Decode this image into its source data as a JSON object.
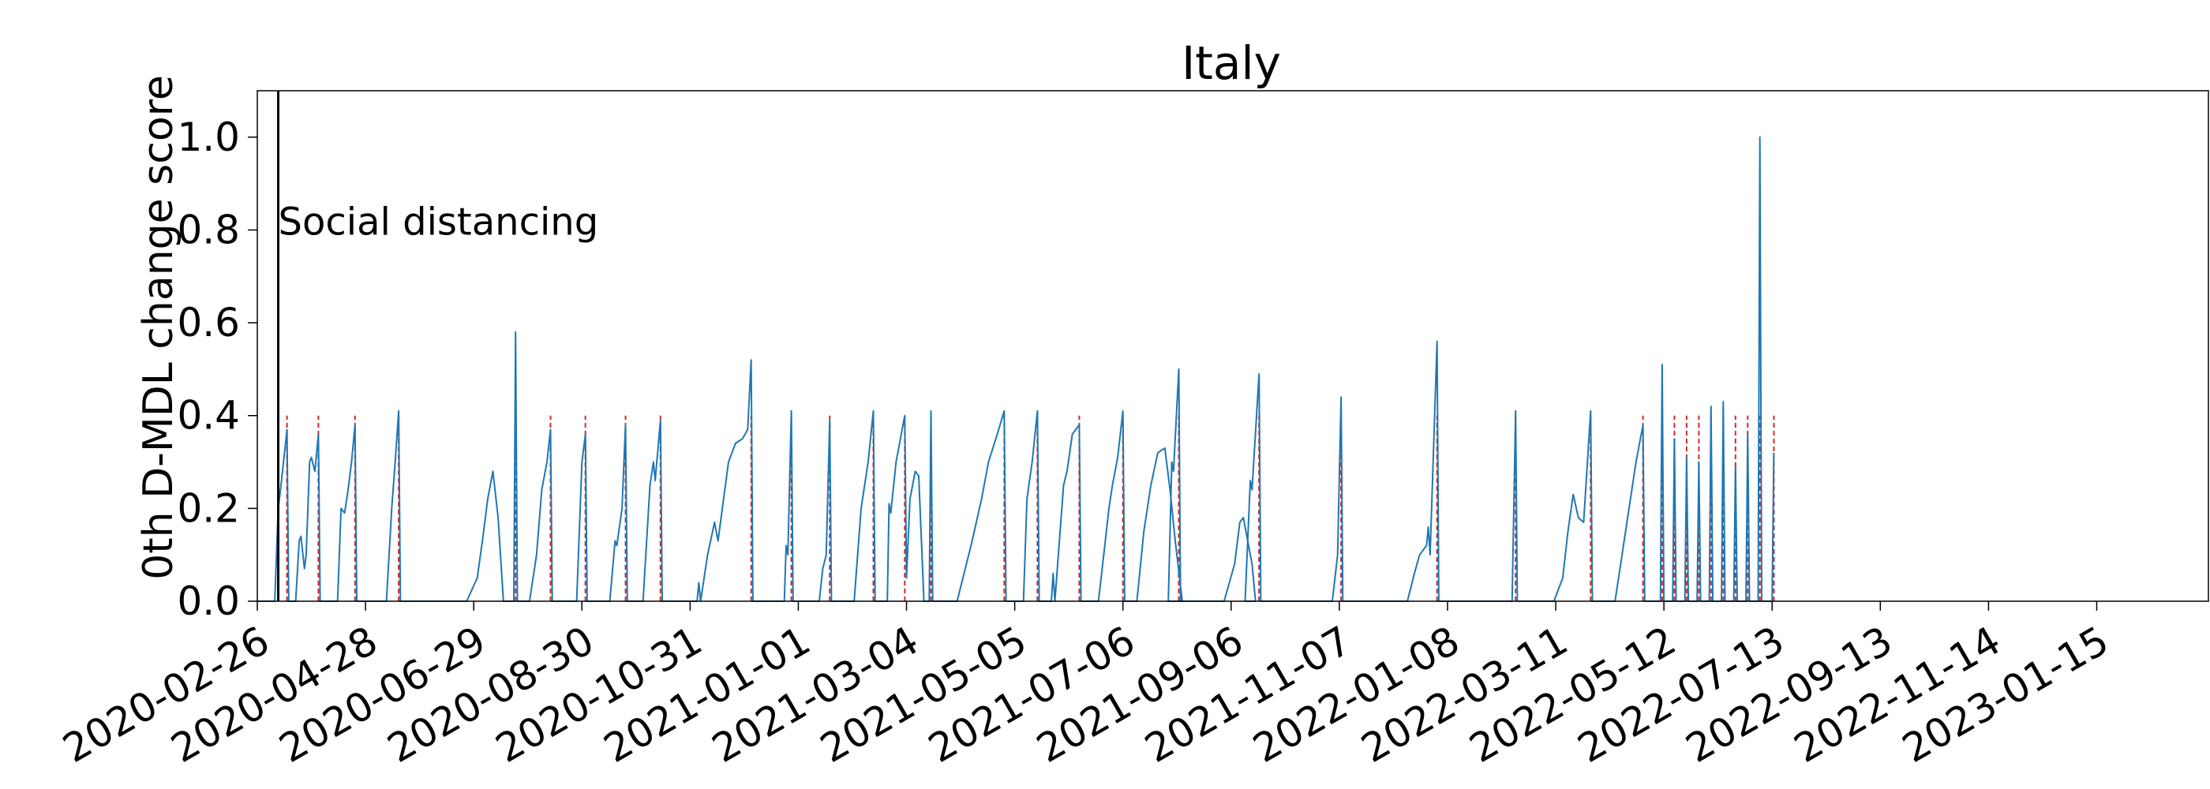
{
  "chart_data": {
    "type": "line",
    "title": "Italy",
    "xlabel": "",
    "ylabel": "0th D-MDL change score",
    "x_start": "2020-02-26",
    "x_end": "2023-03-20",
    "ylim": [
      0,
      1.1
    ],
    "yticks": [
      "0.0",
      "0.2",
      "0.4",
      "0.6",
      "0.8",
      "1.0"
    ],
    "xticks": [
      "2020-02-26",
      "2020-04-28",
      "2020-06-29",
      "2020-08-30",
      "2020-10-31",
      "2021-01-01",
      "2021-03-04",
      "2021-05-05",
      "2021-07-06",
      "2021-09-06",
      "2021-11-07",
      "2022-01-08",
      "2022-03-11",
      "2022-05-12",
      "2022-07-13",
      "2022-09-13",
      "2022-11-14",
      "2023-01-15"
    ],
    "grid": false,
    "series_color": "#1f77b4",
    "alarm_color": "#d62728",
    "event_line_color": "#000000",
    "annotation": {
      "text": "Social distancing",
      "date": "2020-03-09",
      "y": 0.82
    },
    "series": [
      {
        "points": [
          [
            "2020-02-26",
            0
          ],
          [
            "2020-03-07",
            0
          ],
          [
            "2020-03-08",
            0.1
          ],
          [
            "2020-03-09",
            0.2
          ],
          [
            "2020-03-10",
            0.23
          ],
          [
            "2020-03-12",
            0.3
          ],
          [
            "2020-03-14",
            0.37
          ],
          [
            "2020-03-15",
            0
          ],
          [
            "2020-03-19",
            0
          ],
          [
            "2020-03-21",
            0.13
          ],
          [
            "2020-03-22",
            0.14
          ],
          [
            "2020-03-24",
            0.07
          ],
          [
            "2020-03-25",
            0.1
          ],
          [
            "2020-03-27",
            0.3
          ],
          [
            "2020-03-28",
            0.31
          ],
          [
            "2020-03-30",
            0.28
          ],
          [
            "2020-04-01",
            0.36
          ],
          [
            "2020-04-02",
            0
          ],
          [
            "2020-04-12",
            0
          ],
          [
            "2020-04-14",
            0.2
          ],
          [
            "2020-04-16",
            0.19
          ],
          [
            "2020-04-18",
            0.24
          ],
          [
            "2020-04-20",
            0.3
          ],
          [
            "2020-04-22",
            0.38
          ],
          [
            "2020-04-23",
            0
          ],
          [
            "2020-05-10",
            0
          ],
          [
            "2020-05-13",
            0.2
          ],
          [
            "2020-05-15",
            0.3
          ],
          [
            "2020-05-17",
            0.41
          ],
          [
            "2020-05-18",
            0
          ],
          [
            "2020-06-25",
            0
          ],
          [
            "2020-07-01",
            0.05
          ],
          [
            "2020-07-04",
            0.13
          ],
          [
            "2020-07-07",
            0.22
          ],
          [
            "2020-07-10",
            0.28
          ],
          [
            "2020-07-13",
            0.18
          ],
          [
            "2020-07-16",
            0
          ],
          [
            "2020-07-22",
            0
          ],
          [
            "2020-07-23",
            0.58
          ],
          [
            "2020-07-24",
            0
          ],
          [
            "2020-07-31",
            0
          ],
          [
            "2020-08-04",
            0.1
          ],
          [
            "2020-08-07",
            0.24
          ],
          [
            "2020-08-10",
            0.3
          ],
          [
            "2020-08-12",
            0.37
          ],
          [
            "2020-08-13",
            0
          ],
          [
            "2020-08-27",
            0
          ],
          [
            "2020-08-30",
            0.3
          ],
          [
            "2020-09-01",
            0.36
          ],
          [
            "2020-09-02",
            0
          ],
          [
            "2020-09-15",
            0
          ],
          [
            "2020-09-18",
            0.13
          ],
          [
            "2020-09-19",
            0.12
          ],
          [
            "2020-09-22",
            0.2
          ],
          [
            "2020-09-24",
            0.38
          ],
          [
            "2020-09-25",
            0
          ],
          [
            "2020-10-04",
            0
          ],
          [
            "2020-10-08",
            0.25
          ],
          [
            "2020-10-10",
            0.3
          ],
          [
            "2020-10-11",
            0.26
          ],
          [
            "2020-10-14",
            0.39
          ],
          [
            "2020-10-15",
            0
          ],
          [
            "2020-11-04",
            0
          ],
          [
            "2020-11-05",
            0.04
          ],
          [
            "2020-11-06",
            0
          ],
          [
            "2020-11-10",
            0.1
          ],
          [
            "2020-11-14",
            0.17
          ],
          [
            "2020-11-16",
            0.13
          ],
          [
            "2020-11-22",
            0.3
          ],
          [
            "2020-11-26",
            0.34
          ],
          [
            "2020-11-30",
            0.35
          ],
          [
            "2020-12-03",
            0.37
          ],
          [
            "2020-12-05",
            0.52
          ],
          [
            "2020-12-06",
            0
          ],
          [
            "2020-12-24",
            0
          ],
          [
            "2020-12-25",
            0.12
          ],
          [
            "2020-12-26",
            0.1
          ],
          [
            "2020-12-28",
            0.41
          ],
          [
            "2020-12-29",
            0
          ],
          [
            "2021-01-13",
            0
          ],
          [
            "2021-01-15",
            0.07
          ],
          [
            "2021-01-17",
            0.1
          ],
          [
            "2021-01-19",
            0.39
          ],
          [
            "2021-01-20",
            0
          ],
          [
            "2021-02-02",
            0
          ],
          [
            "2021-02-06",
            0.2
          ],
          [
            "2021-02-10",
            0.3
          ],
          [
            "2021-02-13",
            0.41
          ],
          [
            "2021-02-14",
            0
          ],
          [
            "2021-02-21",
            0
          ],
          [
            "2021-02-22",
            0.21
          ],
          [
            "2021-02-23",
            0.19
          ],
          [
            "2021-02-26",
            0.3
          ],
          [
            "2021-03-03",
            0.4
          ],
          [
            "2021-03-04",
            0.05
          ],
          [
            "2021-03-06",
            0.22
          ],
          [
            "2021-03-09",
            0.28
          ],
          [
            "2021-03-11",
            0.27
          ],
          [
            "2021-03-14",
            0
          ],
          [
            "2021-03-17",
            0
          ],
          [
            "2021-03-18",
            0.41
          ],
          [
            "2021-03-19",
            0
          ],
          [
            "2021-04-02",
            0
          ],
          [
            "2021-04-10",
            0.12
          ],
          [
            "2021-04-16",
            0.22
          ],
          [
            "2021-04-20",
            0.3
          ],
          [
            "2021-04-25",
            0.36
          ],
          [
            "2021-04-29",
            0.41
          ],
          [
            "2021-04-30",
            0
          ],
          [
            "2021-05-10",
            0
          ],
          [
            "2021-05-12",
            0.22
          ],
          [
            "2021-05-15",
            0.3
          ],
          [
            "2021-05-18",
            0.41
          ],
          [
            "2021-05-19",
            0
          ],
          [
            "2021-05-26",
            0
          ],
          [
            "2021-05-27",
            0.06
          ],
          [
            "2021-05-28",
            0
          ],
          [
            "2021-05-30",
            0.1
          ],
          [
            "2021-06-02",
            0.25
          ],
          [
            "2021-06-04",
            0.28
          ],
          [
            "2021-06-07",
            0.36
          ],
          [
            "2021-06-11",
            0.38
          ],
          [
            "2021-06-12",
            0
          ],
          [
            "2021-06-22",
            0
          ],
          [
            "2021-06-25",
            0.1
          ],
          [
            "2021-06-28",
            0.2
          ],
          [
            "2021-06-30",
            0.25
          ],
          [
            "2021-07-03",
            0.31
          ],
          [
            "2021-07-06",
            0.41
          ],
          [
            "2021-07-07",
            0
          ],
          [
            "2021-07-14",
            0
          ],
          [
            "2021-07-18",
            0.15
          ],
          [
            "2021-07-22",
            0.25
          ],
          [
            "2021-07-26",
            0.32
          ],
          [
            "2021-07-30",
            0.33
          ],
          [
            "2021-08-02",
            0.24
          ],
          [
            "2021-08-05",
            0.13
          ],
          [
            "2021-08-09",
            0
          ],
          [
            "2021-08-01",
            0
          ],
          [
            "2021-08-03",
            0.3
          ],
          [
            "2021-08-04",
            0.28
          ],
          [
            "2021-08-07",
            0.5
          ],
          [
            "2021-08-08",
            0
          ],
          [
            "2021-09-02",
            0
          ],
          [
            "2021-09-08",
            0.08
          ],
          [
            "2021-09-11",
            0.17
          ],
          [
            "2021-09-13",
            0.18
          ],
          [
            "2021-09-16",
            0.12
          ],
          [
            "2021-09-18",
            0.08
          ],
          [
            "2021-09-20",
            0
          ],
          [
            "2021-09-14",
            0
          ],
          [
            "2021-09-17",
            0.26
          ],
          [
            "2021-09-18",
            0.24
          ],
          [
            "2021-09-22",
            0.49
          ],
          [
            "2021-09-23",
            0
          ],
          [
            "2021-11-03",
            0
          ],
          [
            "2021-11-06",
            0.1
          ],
          [
            "2021-11-08",
            0.44
          ],
          [
            "2021-11-09",
            0
          ],
          [
            "2021-12-16",
            0
          ],
          [
            "2021-12-20",
            0.06
          ],
          [
            "2021-12-23",
            0.1
          ],
          [
            "2021-12-27",
            0.12
          ],
          [
            "2021-12-28",
            0.16
          ],
          [
            "2021-12-29",
            0.1
          ],
          [
            "2022-01-02",
            0.56
          ],
          [
            "2022-01-03",
            0
          ],
          [
            "2022-02-14",
            0
          ],
          [
            "2022-02-16",
            0.41
          ],
          [
            "2022-02-17",
            0
          ],
          [
            "2022-03-10",
            0
          ],
          [
            "2022-03-15",
            0.05
          ],
          [
            "2022-03-18",
            0.15
          ],
          [
            "2022-03-21",
            0.23
          ],
          [
            "2022-03-24",
            0.18
          ],
          [
            "2022-03-27",
            0.17
          ],
          [
            "2022-03-31",
            0.41
          ],
          [
            "2022-04-01",
            0
          ],
          [
            "2022-04-14",
            0
          ],
          [
            "2022-04-18",
            0.1
          ],
          [
            "2022-04-22",
            0.2
          ],
          [
            "2022-04-26",
            0.3
          ],
          [
            "2022-04-30",
            0.38
          ],
          [
            "2022-05-01",
            0
          ],
          [
            "2022-05-10",
            0
          ],
          [
            "2022-05-11",
            0.51
          ],
          [
            "2022-05-12",
            0
          ],
          [
            "2022-05-17",
            0
          ],
          [
            "2022-05-18",
            0.35
          ],
          [
            "2022-05-19",
            0
          ],
          [
            "2022-05-24",
            0
          ],
          [
            "2022-05-25",
            0.31
          ],
          [
            "2022-05-26",
            0
          ],
          [
            "2022-05-31",
            0
          ],
          [
            "2022-06-01",
            0.3
          ],
          [
            "2022-06-02",
            0
          ],
          [
            "2022-06-07",
            0
          ],
          [
            "2022-06-08",
            0.42
          ],
          [
            "2022-06-09",
            0
          ],
          [
            "2022-06-14",
            0
          ],
          [
            "2022-06-15",
            0.43
          ],
          [
            "2022-06-16",
            0
          ],
          [
            "2022-06-21",
            0
          ],
          [
            "2022-06-22",
            0.29
          ],
          [
            "2022-06-23",
            0
          ],
          [
            "2022-06-28",
            0
          ],
          [
            "2022-06-29",
            0.36
          ],
          [
            "2022-06-30",
            0
          ],
          [
            "2022-07-05",
            0
          ],
          [
            "2022-07-06",
            1.0
          ],
          [
            "2022-07-07",
            0
          ],
          [
            "2022-07-13",
            0
          ],
          [
            "2022-07-14",
            0.32
          ]
        ]
      }
    ],
    "alarm_dates": [
      "2020-03-14",
      "2020-04-01",
      "2020-04-22",
      "2020-05-17",
      "2020-07-23",
      "2020-08-12",
      "2020-09-01",
      "2020-09-24",
      "2020-10-14",
      "2020-12-05",
      "2020-12-28",
      "2021-01-19",
      "2021-02-13",
      "2021-03-03",
      "2021-03-18",
      "2021-04-29",
      "2021-05-18",
      "2021-06-11",
      "2021-07-06",
      "2021-08-07",
      "2021-09-22",
      "2021-11-08",
      "2022-01-02",
      "2022-02-16",
      "2022-03-31",
      "2022-04-30",
      "2022-05-11",
      "2022-05-18",
      "2022-05-25",
      "2022-06-01",
      "2022-06-08",
      "2022-06-15",
      "2022-06-22",
      "2022-06-29",
      "2022-07-06",
      "2022-07-14"
    ]
  }
}
